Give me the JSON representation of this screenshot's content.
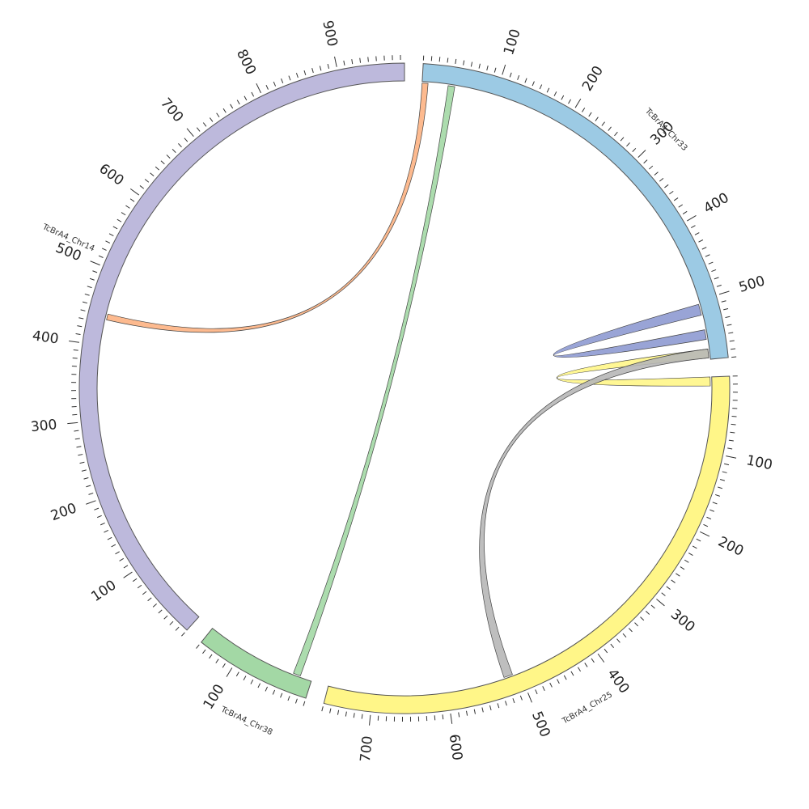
{
  "chart_data": {
    "type": "chord",
    "title": "",
    "scale": {
      "tick_minor": 10,
      "tick_major": 100
    },
    "chromosomes": [
      {
        "id": "chr33",
        "name": "TcBrA4_Chr33",
        "length": 580,
        "color": "#9ccae4"
      },
      {
        "id": "chr25",
        "name": "TcBrA4_Chr25",
        "length": 760,
        "color": "#fff688"
      },
      {
        "id": "chr38",
        "name": "TcBrA4_Chr38",
        "length": 150,
        "color": "#a3d8a5"
      },
      {
        "id": "chr14",
        "name": "TcBrA4_Chr14",
        "length": 985,
        "color": "#bdb9dc"
      }
    ],
    "links": [
      {
        "source": {
          "chr": "chr33",
          "start": 505,
          "end": 520
        },
        "target": {
          "chr": "chr33",
          "start": 540,
          "end": 553
        },
        "color": "#8e9ad1"
      },
      {
        "source": {
          "chr": "chr33",
          "start": 566,
          "end": 578
        },
        "target": {
          "chr": "chr25",
          "start": 0,
          "end": 12
        },
        "color": "#fff688"
      },
      {
        "source": {
          "chr": "chr33",
          "start": 566,
          "end": 578
        },
        "target": {
          "chr": "chr25",
          "start": 510,
          "end": 522
        },
        "color": "#b7b7b7"
      },
      {
        "source": {
          "chr": "chr33",
          "start": 0,
          "end": 8
        },
        "target": {
          "chr": "chr14",
          "start": 435,
          "end": 443
        },
        "color": "#fdb283"
      },
      {
        "source": {
          "chr": "chr33",
          "start": 35,
          "end": 44
        },
        "target": {
          "chr": "chr38",
          "start": 16,
          "end": 26
        },
        "color": "#a3d8a5"
      }
    ]
  }
}
